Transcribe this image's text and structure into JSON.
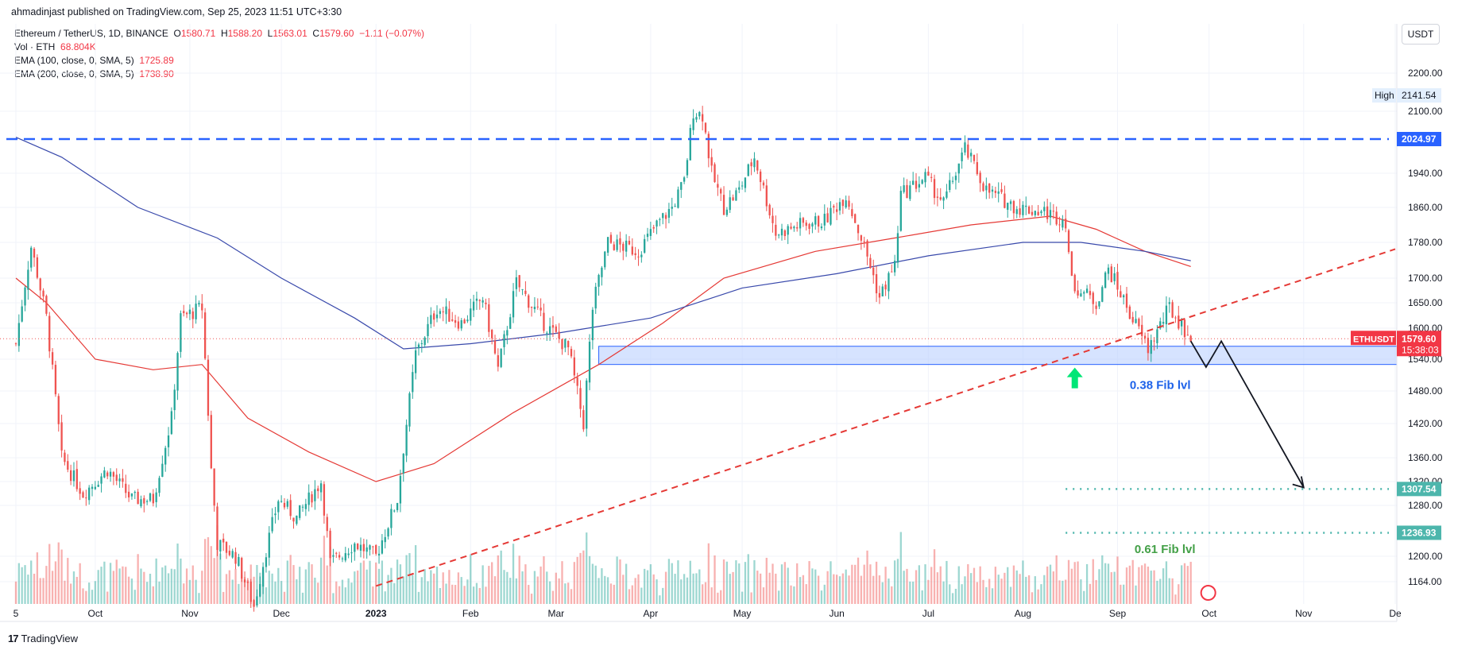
{
  "header": {
    "publisher": "ahmadinjast published on TradingView.com, Sep 25, 2023 11:51 UTC+3:30"
  },
  "legend": {
    "symbol": "Ethereum / TetherUS, 1D, BINANCE",
    "ohlc": {
      "o_label": "O",
      "o": "1580.71",
      "h_label": "H",
      "h": "1588.20",
      "l_label": "L",
      "l": "1563.01",
      "c_label": "C",
      "c": "1579.60",
      "change": "−1.11 (−0.07%)"
    },
    "vol_label": "Vol · ETH",
    "vol_value": "68.804K",
    "ema100_label": "EMA (100, close, 0, SMA, 5)",
    "ema100_value": "1725.89",
    "ema200_label": "EMA (200, close, 0, SMA, 5)",
    "ema200_value": "1738.90"
  },
  "toolbar": {
    "currency": "USDT"
  },
  "footer": {
    "logo_mark": "17",
    "brand": "TradingView"
  },
  "colors": {
    "up": "#26a69a",
    "down": "#ef5350",
    "ema100": "#e53935",
    "ema200": "#3949ab",
    "resistance": "#2962ff",
    "trendline": "#e53935",
    "zone": "#bbd0ff",
    "target": "#4db6ac",
    "badge_high": "#e3effd",
    "badge_price": "#f23645",
    "fib_blue": "#1e63e9",
    "fib_green": "#43a047"
  },
  "chart_data": {
    "type": "candlestick",
    "title": "Ethereum / TetherUS, 1D, BINANCE",
    "y_ticks": [
      2200,
      2100,
      2024.97,
      1940,
      1860,
      1780,
      1700,
      1650,
      1600,
      1540,
      1480,
      1420,
      1360,
      1320,
      1280,
      1200,
      1164
    ],
    "y_tick_labels": [
      "2200.00",
      "2100.00",
      "2024.97",
      "1940.00",
      "1860.00",
      "1780.00",
      "1700.00",
      "1650.00",
      "1600.00",
      "1540.00",
      "1480.00",
      "1420.00",
      "1360.00",
      "1320.00",
      "1280.00",
      "1200.00",
      "1164.00"
    ],
    "x_ticks": [
      {
        "label": "5",
        "date": "2022-09-05"
      },
      {
        "label": "Oct",
        "date": "2022-10-01"
      },
      {
        "label": "Nov",
        "date": "2022-11-01"
      },
      {
        "label": "Dec",
        "date": "2022-12-01"
      },
      {
        "label": "2023",
        "date": "2023-01-01",
        "bold": true
      },
      {
        "label": "Feb",
        "date": "2023-02-01"
      },
      {
        "label": "Mar",
        "date": "2023-03-01"
      },
      {
        "label": "Apr",
        "date": "2023-04-01"
      },
      {
        "label": "May",
        "date": "2023-05-01"
      },
      {
        "label": "Jun",
        "date": "2023-06-01"
      },
      {
        "label": "Jul",
        "date": "2023-07-01"
      },
      {
        "label": "Aug",
        "date": "2023-08-01"
      },
      {
        "label": "Sep",
        "date": "2023-09-01"
      },
      {
        "label": "Oct",
        "date": "2023-10-01"
      },
      {
        "label": "Nov",
        "date": "2023-11-01"
      },
      {
        "label": "De",
        "date": "2023-12-01"
      }
    ],
    "anchors": [
      {
        "date": "2022-09-05",
        "close": 1570
      },
      {
        "date": "2022-09-10",
        "close": 1770
      },
      {
        "date": "2022-09-15",
        "close": 1620
      },
      {
        "date": "2022-09-20",
        "close": 1360
      },
      {
        "date": "2022-09-27",
        "close": 1300
      },
      {
        "date": "2022-10-05",
        "close": 1340
      },
      {
        "date": "2022-10-13",
        "close": 1290
      },
      {
        "date": "2022-10-20",
        "close": 1290
      },
      {
        "date": "2022-10-26",
        "close": 1430
      },
      {
        "date": "2022-10-29",
        "close": 1620
      },
      {
        "date": "2022-11-05",
        "close": 1640
      },
      {
        "date": "2022-11-08",
        "close": 1340
      },
      {
        "date": "2022-11-10",
        "close": 1220
      },
      {
        "date": "2022-11-16",
        "close": 1200
      },
      {
        "date": "2022-11-22",
        "close": 1130
      },
      {
        "date": "2022-11-30",
        "close": 1290
      },
      {
        "date": "2022-12-06",
        "close": 1260
      },
      {
        "date": "2022-12-14",
        "close": 1320
      },
      {
        "date": "2022-12-17",
        "close": 1190
      },
      {
        "date": "2022-12-25",
        "close": 1220
      },
      {
        "date": "2023-01-01",
        "close": 1200
      },
      {
        "date": "2023-01-08",
        "close": 1290
      },
      {
        "date": "2023-01-14",
        "close": 1550
      },
      {
        "date": "2023-01-21",
        "close": 1640
      },
      {
        "date": "2023-01-29",
        "close": 1610
      },
      {
        "date": "2023-02-05",
        "close": 1660
      },
      {
        "date": "2023-02-10",
        "close": 1520
      },
      {
        "date": "2023-02-16",
        "close": 1690
      },
      {
        "date": "2023-02-25",
        "close": 1610
      },
      {
        "date": "2023-03-05",
        "close": 1560
      },
      {
        "date": "2023-03-10",
        "close": 1420
      },
      {
        "date": "2023-03-13",
        "close": 1640
      },
      {
        "date": "2023-03-18",
        "close": 1780
      },
      {
        "date": "2023-03-28",
        "close": 1760
      },
      {
        "date": "2023-04-03",
        "close": 1820
      },
      {
        "date": "2023-04-08",
        "close": 1860
      },
      {
        "date": "2023-04-12",
        "close": 1920
      },
      {
        "date": "2023-04-15",
        "close": 2100
      },
      {
        "date": "2023-04-18",
        "close": 2090
      },
      {
        "date": "2023-04-21",
        "close": 1940
      },
      {
        "date": "2023-04-25",
        "close": 1860
      },
      {
        "date": "2023-04-30",
        "close": 1900
      },
      {
        "date": "2023-05-05",
        "close": 1980
      },
      {
        "date": "2023-05-12",
        "close": 1800
      },
      {
        "date": "2023-05-20",
        "close": 1820
      },
      {
        "date": "2023-05-28",
        "close": 1830
      },
      {
        "date": "2023-06-04",
        "close": 1890
      },
      {
        "date": "2023-06-10",
        "close": 1770
      },
      {
        "date": "2023-06-15",
        "close": 1660
      },
      {
        "date": "2023-06-20",
        "close": 1730
      },
      {
        "date": "2023-06-22",
        "close": 1890
      },
      {
        "date": "2023-06-30",
        "close": 1930
      },
      {
        "date": "2023-07-06",
        "close": 1870
      },
      {
        "date": "2023-07-13",
        "close": 2000
      },
      {
        "date": "2023-07-20",
        "close": 1900
      },
      {
        "date": "2023-07-30",
        "close": 1860
      },
      {
        "date": "2023-08-08",
        "close": 1850
      },
      {
        "date": "2023-08-15",
        "close": 1830
      },
      {
        "date": "2023-08-17",
        "close": 1690
      },
      {
        "date": "2023-08-25",
        "close": 1650
      },
      {
        "date": "2023-08-29",
        "close": 1720
      },
      {
        "date": "2023-09-05",
        "close": 1630
      },
      {
        "date": "2023-09-11",
        "close": 1560
      },
      {
        "date": "2023-09-18",
        "close": 1640
      },
      {
        "date": "2023-09-25",
        "close": 1579.6
      }
    ],
    "ema100": [
      {
        "date": "2022-09-05",
        "value": 1700
      },
      {
        "date": "2022-09-15",
        "value": 1650
      },
      {
        "date": "2022-10-01",
        "value": 1540
      },
      {
        "date": "2022-10-20",
        "value": 1520
      },
      {
        "date": "2022-11-05",
        "value": 1530
      },
      {
        "date": "2022-11-20",
        "value": 1430
      },
      {
        "date": "2022-12-10",
        "value": 1370
      },
      {
        "date": "2023-01-01",
        "value": 1320
      },
      {
        "date": "2023-01-20",
        "value": 1350
      },
      {
        "date": "2023-02-15",
        "value": 1440
      },
      {
        "date": "2023-03-15",
        "value": 1530
      },
      {
        "date": "2023-04-05",
        "value": 1610
      },
      {
        "date": "2023-04-25",
        "value": 1700
      },
      {
        "date": "2023-05-25",
        "value": 1760
      },
      {
        "date": "2023-06-20",
        "value": 1790
      },
      {
        "date": "2023-07-15",
        "value": 1820
      },
      {
        "date": "2023-08-10",
        "value": 1840
      },
      {
        "date": "2023-08-25",
        "value": 1810
      },
      {
        "date": "2023-09-10",
        "value": 1760
      },
      {
        "date": "2023-09-25",
        "value": 1725.89
      }
    ],
    "ema200": [
      {
        "date": "2022-09-05",
        "value": 2030
      },
      {
        "date": "2022-09-20",
        "value": 1980
      },
      {
        "date": "2022-10-15",
        "value": 1860
      },
      {
        "date": "2022-11-10",
        "value": 1790
      },
      {
        "date": "2022-12-01",
        "value": 1700
      },
      {
        "date": "2022-12-25",
        "value": 1620
      },
      {
        "date": "2023-01-10",
        "value": 1560
      },
      {
        "date": "2023-02-01",
        "value": 1570
      },
      {
        "date": "2023-03-01",
        "value": 1590
      },
      {
        "date": "2023-04-01",
        "value": 1620
      },
      {
        "date": "2023-05-01",
        "value": 1680
      },
      {
        "date": "2023-06-01",
        "value": 1710
      },
      {
        "date": "2023-07-01",
        "value": 1750
      },
      {
        "date": "2023-08-01",
        "value": 1780
      },
      {
        "date": "2023-08-20",
        "value": 1780
      },
      {
        "date": "2023-09-10",
        "value": 1760
      },
      {
        "date": "2023-09-25",
        "value": 1738.9
      }
    ],
    "annotations": {
      "resistance_value": 2024.97,
      "resistance_label": "2024.97",
      "high_label": "High",
      "high_value": "2141.54",
      "price_symbol": "ETHUSDT",
      "price_value": "1579.60",
      "countdown": "15:38:03",
      "zone": {
        "from_date": "2023-03-15",
        "to_date": "2023-12-01",
        "top": 1565,
        "bottom": 1530
      },
      "fib_038_label": "0.38 Fib lvl",
      "fib_061_label": "0.61 Fib lvl",
      "target_1": {
        "value": 1307.54,
        "label": "1307.54",
        "from_date": "2023-08-15"
      },
      "target_2": {
        "value": 1236.93,
        "label": "1236.93",
        "from_date": "2023-08-15"
      },
      "trendline": [
        {
          "date": "2023-01-01",
          "value": 1158
        },
        {
          "date": "2023-12-01",
          "value": 1765
        }
      ],
      "projection": [
        {
          "date": "2023-09-25",
          "value": 1575
        },
        {
          "date": "2023-09-30",
          "value": 1525
        },
        {
          "date": "2023-10-05",
          "value": 1575
        },
        {
          "date": "2023-11-01",
          "value": 1310
        }
      ],
      "up_arrow_date": "2023-08-18"
    },
    "grid": true,
    "legend_position": "top-left"
  }
}
